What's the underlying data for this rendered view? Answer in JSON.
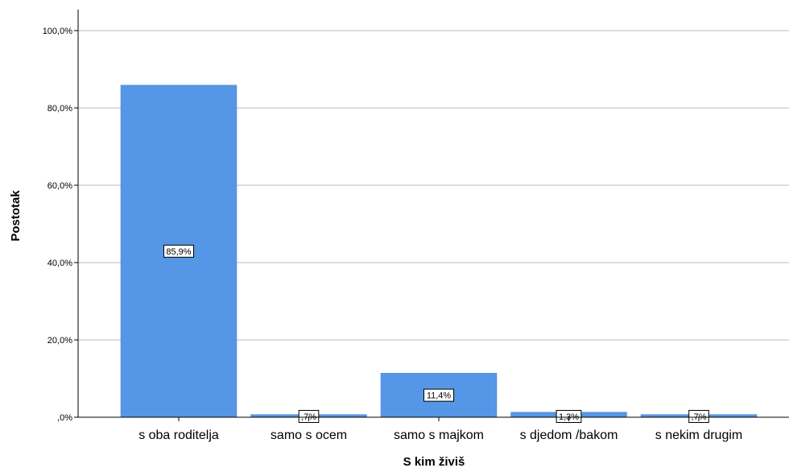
{
  "chart_data": {
    "type": "bar",
    "categories": [
      "s oba roditelja",
      "samo s ocem",
      "samo s majkom",
      "s djedom /bakom",
      "s nekim drugim"
    ],
    "values": [
      85.9,
      0.7,
      11.4,
      1.3,
      0.7
    ],
    "data_labels": [
      "85,9%",
      ",7%",
      "11,4%",
      "1,3%",
      ",7%"
    ],
    "ylim": [
      0,
      100
    ],
    "yticks": [
      0,
      20,
      40,
      60,
      80,
      100
    ],
    "ytick_labels": [
      ",0%",
      "20,0%",
      "40,0%",
      "60,0%",
      "80,0%",
      "100,0%"
    ],
    "xlabel": "S kim živiš",
    "ylabel": "Postotak",
    "grid": true,
    "bar_color": "#5596e6"
  }
}
